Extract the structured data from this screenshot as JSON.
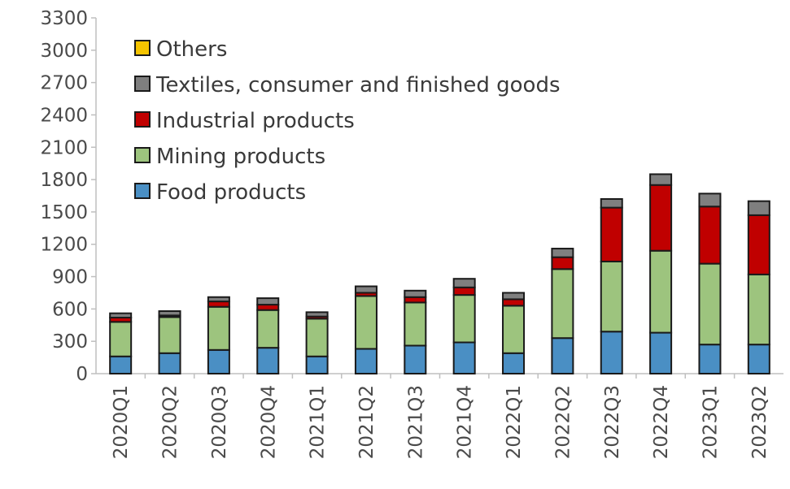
{
  "chart_data": {
    "type": "bar",
    "stacked": true,
    "categories": [
      "2020Q1",
      "2020Q2",
      "2020Q3",
      "2020Q4",
      "2021Q1",
      "2021Q2",
      "2021Q3",
      "2021Q4",
      "2022Q1",
      "2022Q2",
      "2022Q3",
      "2022Q4",
      "2023Q1",
      "2023Q2"
    ],
    "series": [
      {
        "name": "Food products",
        "color": "#4a8fc4",
        "values": [
          160,
          190,
          220,
          240,
          160,
          230,
          260,
          290,
          190,
          330,
          390,
          380,
          270,
          270
        ]
      },
      {
        "name": "Mining products",
        "color": "#9dc47e",
        "values": [
          320,
          335,
          400,
          350,
          350,
          490,
          400,
          440,
          440,
          640,
          650,
          760,
          750,
          650
        ]
      },
      {
        "name": "Industrial products",
        "color": "#c00000",
        "values": [
          40,
          15,
          50,
          50,
          20,
          30,
          50,
          70,
          60,
          110,
          500,
          610,
          530,
          550
        ]
      },
      {
        "name": "Textiles, consumer and finished goods",
        "color": "#7f7f7f",
        "values": [
          40,
          40,
          40,
          60,
          40,
          60,
          60,
          80,
          60,
          80,
          80,
          100,
          120,
          130
        ]
      },
      {
        "name": "Others",
        "color": "#f5c400",
        "values": [
          0,
          0,
          0,
          0,
          0,
          0,
          0,
          0,
          0,
          0,
          0,
          0,
          0,
          0
        ]
      }
    ],
    "legend_order": [
      "Others",
      "Textiles, consumer and finished goods",
      "Industrial products",
      "Mining products",
      "Food products"
    ],
    "y_ticks": [
      0,
      300,
      600,
      900,
      1200,
      1500,
      1800,
      2100,
      2400,
      2700,
      3000,
      3300
    ],
    "ylim": [
      0,
      3300
    ],
    "grid": false,
    "legend_position": "top-left"
  }
}
